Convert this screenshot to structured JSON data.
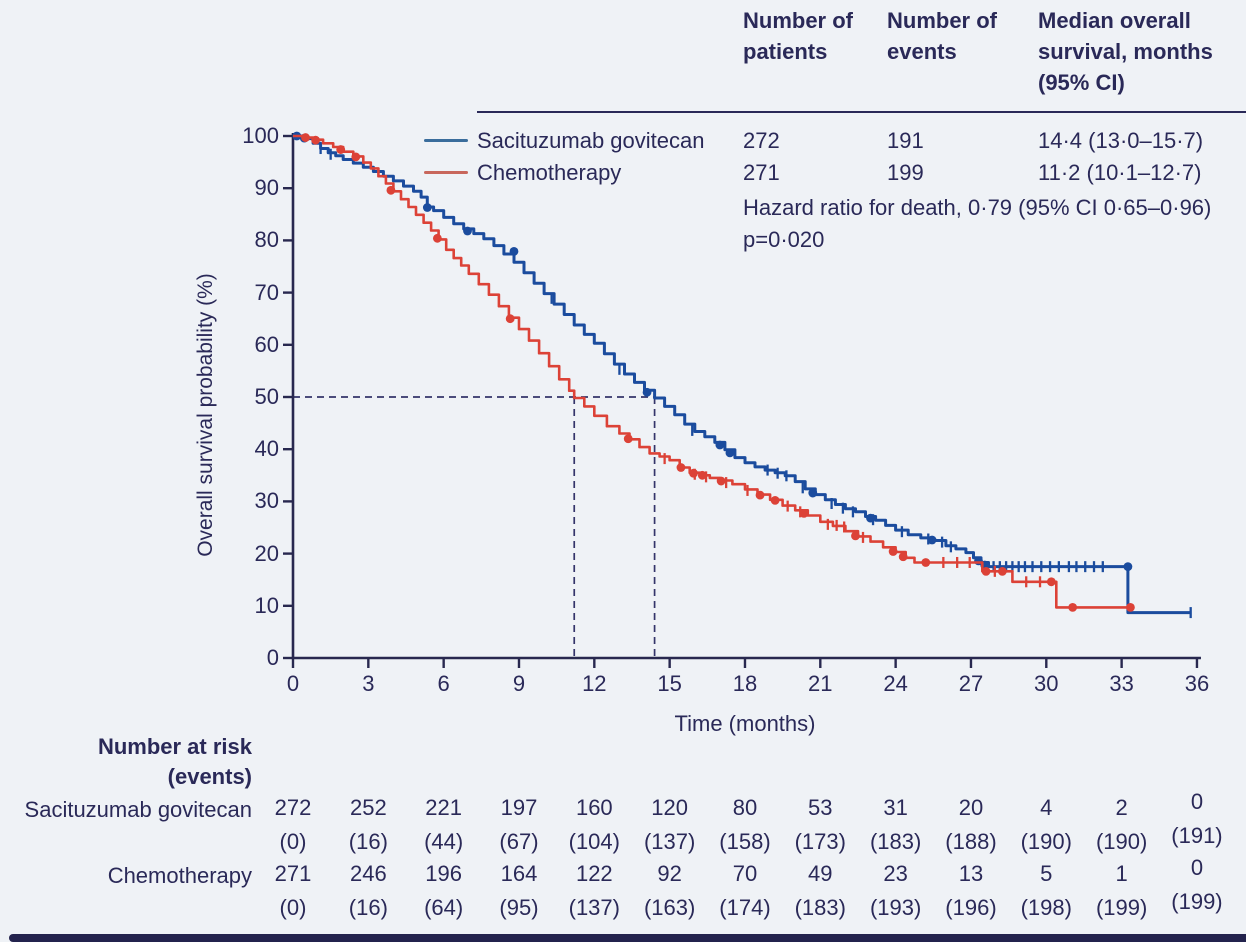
{
  "figure": {
    "background": "#eff2f6",
    "text_color": "#2a2958",
    "axis_color": "#28284f",
    "median_dash_color": "#34346a",
    "bottom_bar_color": "#23234d"
  },
  "summary_table": {
    "columns": [
      "Number of patients",
      "Number of events",
      "Median overall survival, months (95% CI)"
    ],
    "rows": [
      {
        "label": "Sacituzumab govitecan",
        "curve_color": "#1b4c9e",
        "legend_color": "#3a6d9c",
        "patients": "272",
        "events": "191",
        "median": "14·4 (13·0–15·7)"
      },
      {
        "label": "Chemotherapy",
        "curve_color": "#dc4237",
        "legend_color": "#c8675c",
        "patients": "271",
        "events": "199",
        "median": "11·2 (10·1–12·7)"
      }
    ],
    "hazard_line": "Hazard ratio for death, 0·79 (95% CI 0·65–0·96)",
    "p_line": "p=0·020"
  },
  "chart_data": {
    "type": "line",
    "subtype": "kaplan-meier-step",
    "title": "",
    "xlabel": "Time (months)",
    "ylabel": "Overall survival probability (%)",
    "xlim": [
      0,
      36
    ],
    "ylim": [
      0,
      100
    ],
    "xticks": [
      0,
      3,
      6,
      9,
      12,
      15,
      18,
      21,
      24,
      27,
      30,
      33,
      36
    ],
    "yticks": [
      0,
      10,
      20,
      30,
      40,
      50,
      60,
      70,
      80,
      90,
      100
    ],
    "grid": false,
    "legend_position": "top-left-inside",
    "median_markers": {
      "y": 50,
      "x_values": [
        11.2,
        14.4
      ]
    },
    "series": [
      {
        "name": "Sacituzumab govitecan",
        "color": "#1b4c9e",
        "median_months": 14.4,
        "step_points": [
          [
            0,
            100
          ],
          [
            0.5,
            99.5
          ],
          [
            0.8,
            98.6
          ],
          [
            1.1,
            97.6
          ],
          [
            1.4,
            96.8
          ],
          [
            1.7,
            96.2
          ],
          [
            2.0,
            95.5
          ],
          [
            2.4,
            94.8
          ],
          [
            2.8,
            94.0
          ],
          [
            3.2,
            93.2
          ],
          [
            3.6,
            92.3
          ],
          [
            4.0,
            91.4
          ],
          [
            4.4,
            90.4
          ],
          [
            4.8,
            89.4
          ],
          [
            5.1,
            88.3
          ],
          [
            5.35,
            86.4
          ],
          [
            5.6,
            85.7
          ],
          [
            6.0,
            84.4
          ],
          [
            6.4,
            83.2
          ],
          [
            6.8,
            82.2
          ],
          [
            7.2,
            81.3
          ],
          [
            7.6,
            80.3
          ],
          [
            8.0,
            79.0
          ],
          [
            8.4,
            77.4
          ],
          [
            8.8,
            75.8
          ],
          [
            9.2,
            73.8
          ],
          [
            9.6,
            71.8
          ],
          [
            10.0,
            69.8
          ],
          [
            10.4,
            67.8
          ],
          [
            10.8,
            65.8
          ],
          [
            11.2,
            63.8
          ],
          [
            11.6,
            62.0
          ],
          [
            12.0,
            60.3
          ],
          [
            12.4,
            58.3
          ],
          [
            12.8,
            56.3
          ],
          [
            13.2,
            54.4
          ],
          [
            13.6,
            52.8
          ],
          [
            14.0,
            51.3
          ],
          [
            14.4,
            49.8
          ],
          [
            14.8,
            48.2
          ],
          [
            15.2,
            46.6
          ],
          [
            15.6,
            44.8
          ],
          [
            16.0,
            43.4
          ],
          [
            16.4,
            42.4
          ],
          [
            16.8,
            41.3
          ],
          [
            17.2,
            39.9
          ],
          [
            17.6,
            38.4
          ],
          [
            18.0,
            37.4
          ],
          [
            18.4,
            36.6
          ],
          [
            18.8,
            36.0
          ],
          [
            19.2,
            35.5
          ],
          [
            19.6,
            34.9
          ],
          [
            20.0,
            33.8
          ],
          [
            20.4,
            32.4
          ],
          [
            20.8,
            31.3
          ],
          [
            21.2,
            30.3
          ],
          [
            21.6,
            29.4
          ],
          [
            22.0,
            28.6
          ],
          [
            22.4,
            28.0
          ],
          [
            22.8,
            27.1
          ],
          [
            23.2,
            26.4
          ],
          [
            23.6,
            25.4
          ],
          [
            24.0,
            24.5
          ],
          [
            24.5,
            23.6
          ],
          [
            25.0,
            23.0
          ],
          [
            25.5,
            22.5
          ],
          [
            26.0,
            21.5
          ],
          [
            26.4,
            20.9
          ],
          [
            26.8,
            20.2
          ],
          [
            27.1,
            19.2
          ],
          [
            27.4,
            18.3
          ],
          [
            27.7,
            17.5
          ],
          [
            33.25,
            17.5
          ],
          [
            33.25,
            8.7
          ],
          [
            35.75,
            8.7
          ]
        ],
        "censor_ticks": [
          [
            1.1,
            97.6
          ],
          [
            1.5,
            96.5
          ],
          [
            10.3,
            68.9
          ],
          [
            13.0,
            55.3
          ],
          [
            15.9,
            43.6
          ],
          [
            18.9,
            36.0
          ],
          [
            19.3,
            35.4
          ],
          [
            19.65,
            34.9
          ],
          [
            20.3,
            32.6
          ],
          [
            21.45,
            29.6
          ],
          [
            21.9,
            28.7
          ],
          [
            22.3,
            28.0
          ],
          [
            23.1,
            26.5
          ],
          [
            24.25,
            24.2
          ],
          [
            25.3,
            22.8
          ],
          [
            25.85,
            22.2
          ],
          [
            26.2,
            21.3
          ],
          [
            27.9,
            17.5
          ],
          [
            28.15,
            17.5
          ],
          [
            28.4,
            17.5
          ],
          [
            28.65,
            17.5
          ],
          [
            28.9,
            17.5
          ],
          [
            29.15,
            17.5
          ],
          [
            29.45,
            17.5
          ],
          [
            29.8,
            17.5
          ],
          [
            30.15,
            17.5
          ],
          [
            30.5,
            17.5
          ],
          [
            30.9,
            17.5
          ],
          [
            31.2,
            17.5
          ],
          [
            31.55,
            17.5
          ],
          [
            31.9,
            17.5
          ],
          [
            32.25,
            17.5
          ],
          [
            35.75,
            8.7
          ]
        ],
        "dots": [
          [
            0.15,
            100
          ],
          [
            0.45,
            99.6
          ],
          [
            5.35,
            86.3
          ],
          [
            6.95,
            81.8
          ],
          [
            8.8,
            77.9
          ],
          [
            14.1,
            50.9
          ],
          [
            17.0,
            40.8
          ],
          [
            17.4,
            39.3
          ],
          [
            20.7,
            31.6
          ],
          [
            23.0,
            26.8
          ],
          [
            25.45,
            22.6
          ],
          [
            27.3,
            18.6
          ],
          [
            27.55,
            17.8
          ],
          [
            33.25,
            17.5
          ]
        ]
      },
      {
        "name": "Chemotherapy",
        "color": "#dc4237",
        "median_months": 11.2,
        "step_points": [
          [
            0,
            100
          ],
          [
            0.4,
            99.7
          ],
          [
            0.8,
            99.3
          ],
          [
            1.2,
            98.6
          ],
          [
            1.6,
            97.9
          ],
          [
            2.0,
            97.0
          ],
          [
            2.4,
            96.1
          ],
          [
            2.8,
            94.9
          ],
          [
            3.1,
            93.8
          ],
          [
            3.4,
            92.3
          ],
          [
            3.7,
            90.9
          ],
          [
            4.0,
            89.4
          ],
          [
            4.3,
            87.9
          ],
          [
            4.6,
            86.4
          ],
          [
            4.9,
            84.9
          ],
          [
            5.2,
            83.4
          ],
          [
            5.5,
            81.9
          ],
          [
            5.8,
            80.2
          ],
          [
            6.1,
            78.2
          ],
          [
            6.4,
            76.6
          ],
          [
            6.7,
            75.2
          ],
          [
            7.0,
            73.6
          ],
          [
            7.4,
            71.6
          ],
          [
            7.8,
            69.6
          ],
          [
            8.2,
            67.4
          ],
          [
            8.6,
            65.2
          ],
          [
            9.0,
            63.0
          ],
          [
            9.4,
            60.8
          ],
          [
            9.8,
            58.4
          ],
          [
            10.2,
            55.9
          ],
          [
            10.6,
            53.4
          ],
          [
            11.0,
            51.2
          ],
          [
            11.2,
            49.8
          ],
          [
            11.6,
            48.2
          ],
          [
            12.0,
            46.4
          ],
          [
            12.5,
            44.4
          ],
          [
            13.0,
            43.0
          ],
          [
            13.4,
            41.9
          ],
          [
            13.8,
            40.4
          ],
          [
            14.2,
            39.2
          ],
          [
            14.6,
            38.6
          ],
          [
            15.0,
            37.9
          ],
          [
            15.4,
            36.5
          ],
          [
            15.8,
            35.5
          ],
          [
            16.2,
            35.0
          ],
          [
            16.6,
            34.5
          ],
          [
            17.0,
            34.0
          ],
          [
            17.5,
            33.3
          ],
          [
            18.0,
            32.3
          ],
          [
            18.5,
            31.3
          ],
          [
            19.0,
            30.3
          ],
          [
            19.5,
            29.2
          ],
          [
            20.0,
            28.3
          ],
          [
            20.5,
            27.3
          ],
          [
            21.0,
            26.1
          ],
          [
            21.5,
            25.3
          ],
          [
            22.0,
            24.3
          ],
          [
            22.5,
            23.3
          ],
          [
            23.0,
            22.3
          ],
          [
            23.5,
            21.2
          ],
          [
            24.0,
            20.3
          ],
          [
            24.4,
            19.2
          ],
          [
            24.75,
            18.3
          ],
          [
            27.35,
            18.3
          ],
          [
            27.45,
            16.6
          ],
          [
            28.6,
            16.6
          ],
          [
            28.65,
            14.6
          ],
          [
            30.35,
            14.6
          ],
          [
            30.4,
            9.7
          ],
          [
            33.35,
            9.7
          ]
        ],
        "censor_ticks": [
          [
            14.8,
            38.2
          ],
          [
            16.0,
            35.2
          ],
          [
            16.45,
            34.7
          ],
          [
            17.25,
            33.6
          ],
          [
            18.1,
            32.1
          ],
          [
            19.7,
            29.1
          ],
          [
            20.2,
            28.0
          ],
          [
            21.3,
            25.6
          ],
          [
            21.65,
            25.4
          ],
          [
            21.95,
            25.1
          ],
          [
            22.7,
            23.1
          ],
          [
            25.9,
            18.3
          ],
          [
            26.45,
            18.3
          ],
          [
            26.95,
            18.3
          ],
          [
            27.95,
            16.6
          ],
          [
            29.2,
            14.6
          ],
          [
            29.75,
            14.6
          ]
        ],
        "dots": [
          [
            0.5,
            99.7
          ],
          [
            0.9,
            99.2
          ],
          [
            1.9,
            97.4
          ],
          [
            2.5,
            96.0
          ],
          [
            3.9,
            89.6
          ],
          [
            5.75,
            80.4
          ],
          [
            8.65,
            65.0
          ],
          [
            13.35,
            42.0
          ],
          [
            15.45,
            36.5
          ],
          [
            15.95,
            35.4
          ],
          [
            16.3,
            35.0
          ],
          [
            17.05,
            33.9
          ],
          [
            18.6,
            31.2
          ],
          [
            19.2,
            30.2
          ],
          [
            20.35,
            27.7
          ],
          [
            22.4,
            23.4
          ],
          [
            23.9,
            20.4
          ],
          [
            24.3,
            19.4
          ],
          [
            25.2,
            18.3
          ],
          [
            27.6,
            16.6
          ],
          [
            28.25,
            16.6
          ],
          [
            30.2,
            14.6
          ],
          [
            31.05,
            9.7
          ],
          [
            33.35,
            9.7
          ]
        ]
      }
    ]
  },
  "risk_table": {
    "header_line1": "Number at risk",
    "header_line2": "(events)",
    "times": [
      0,
      3,
      6,
      9,
      12,
      15,
      18,
      21,
      24,
      27,
      30,
      33,
      36
    ],
    "rows": [
      {
        "label": "Sacituzumab govitecan",
        "at_risk": [
          "272",
          "252",
          "221",
          "197",
          "160",
          "120",
          "80",
          "53",
          "31",
          "20",
          "4",
          "2",
          "0"
        ],
        "events": [
          "(0)",
          "(16)",
          "(44)",
          "(67)",
          "(104)",
          "(137)",
          "(158)",
          "(173)",
          "(183)",
          "(188)",
          "(190)",
          "(190)",
          "(191)"
        ]
      },
      {
        "label": "Chemotherapy",
        "at_risk": [
          "271",
          "246",
          "196",
          "164",
          "122",
          "92",
          "70",
          "49",
          "23",
          "13",
          "5",
          "1",
          "0"
        ],
        "events": [
          "(0)",
          "(16)",
          "(64)",
          "(95)",
          "(137)",
          "(163)",
          "(174)",
          "(183)",
          "(193)",
          "(196)",
          "(198)",
          "(199)",
          "(199)"
        ]
      }
    ]
  }
}
